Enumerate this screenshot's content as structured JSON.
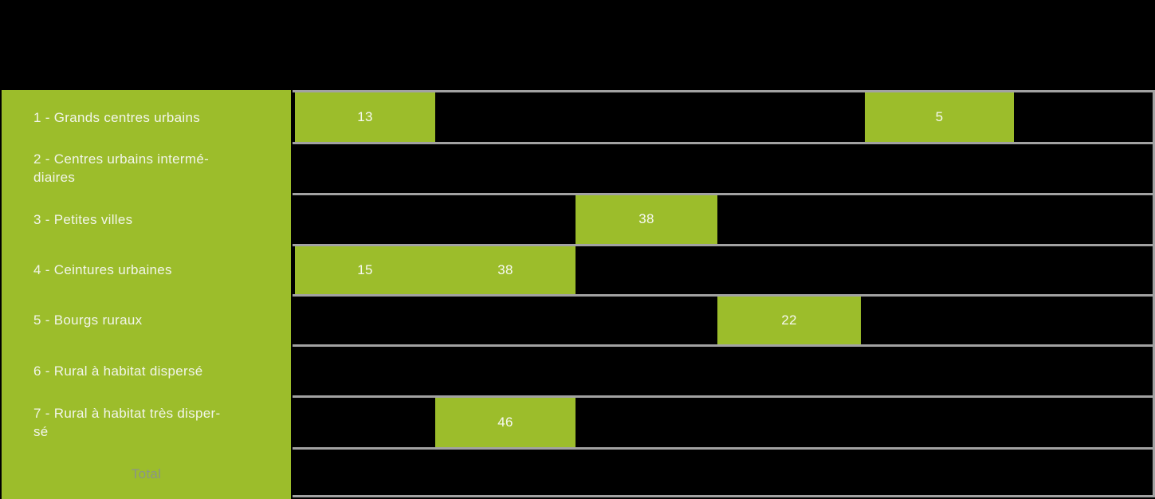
{
  "colors": {
    "highlight_green": "#9cbd2b",
    "grid_gray": "#a2a2a2",
    "background_black": "#000000",
    "label_text": "#f2f5ea",
    "total_text": "#8a948a"
  },
  "table": {
    "row_labels": [
      "1 - Grands centres urbains",
      "2 - Centres urbains intermé-\ndiaires",
      "3 - Petites villes",
      "4 - Ceintures urbaines",
      "5 - Bourgs ruraux",
      "6 - Rural à habitat dispersé",
      "7 - Rural à habitat très disper-\nsé",
      "Total"
    ],
    "cells": [
      {
        "value": "13"
      },
      {
        "value": "5"
      },
      {
        "value": "38"
      },
      {
        "value": "15"
      },
      {
        "value": "38"
      },
      {
        "value": "22"
      },
      {
        "value": "46"
      }
    ]
  },
  "chart_data": {
    "type": "table",
    "title": "",
    "row_categories": [
      "1 - Grands centres urbains",
      "2 - Centres urbains intermédiaires",
      "3 - Petites villes",
      "4 - Ceintures urbaines",
      "5 - Bourgs ruraux",
      "6 - Rural à habitat dispersé",
      "7 - Rural à habitat très dispersé",
      "Total"
    ],
    "num_data_columns": 6,
    "column_headers_visible": false,
    "visible_cells": [
      {
        "row": "1 - Grands centres urbains",
        "column_index": 1,
        "value": 13
      },
      {
        "row": "1 - Grands centres urbains",
        "column_index": 5,
        "value": 5
      },
      {
        "row": "3 - Petites villes",
        "column_index": 3,
        "value": 38
      },
      {
        "row": "4 - Ceintures urbaines",
        "column_index": 1,
        "value": 15
      },
      {
        "row": "4 - Ceintures urbaines",
        "column_index": 2,
        "value": 38
      },
      {
        "row": "5 - Bourgs ruraux",
        "column_index": 4,
        "value": 22
      },
      {
        "row": "7 - Rural à habitat très dispersé",
        "column_index": 2,
        "value": 46
      }
    ],
    "layout_hint": "Grid table: green category column on the left, 6 data columns with gray horizontal row separators; only green highlighted cells show legible values, remaining cells and header band are black."
  }
}
